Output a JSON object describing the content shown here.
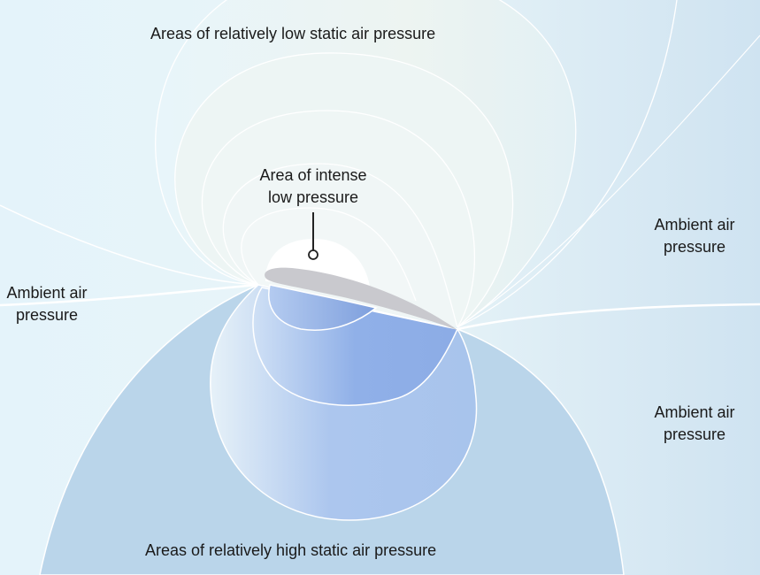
{
  "labels": {
    "low_static": "Areas of relatively low static air pressure",
    "intense_low_line1": "Area of intense",
    "intense_low_line2": "low pressure",
    "ambient_left_1": "Ambient air",
    "ambient_left_2": "pressure",
    "ambient_right_top_1": "Ambient air",
    "ambient_right_top_2": "pressure",
    "ambient_right_bottom_1": "Ambient air",
    "ambient_right_bottom_2": "pressure",
    "high_static": "Areas of relatively high static air pressure"
  },
  "colors": {
    "airfoil": "#c9c9ce",
    "low_pressure": "#eef5f7",
    "high_pressure_outer": "#b9d5ea",
    "high_pressure_inner": "#8eaee8",
    "contour": "#ffffff"
  }
}
